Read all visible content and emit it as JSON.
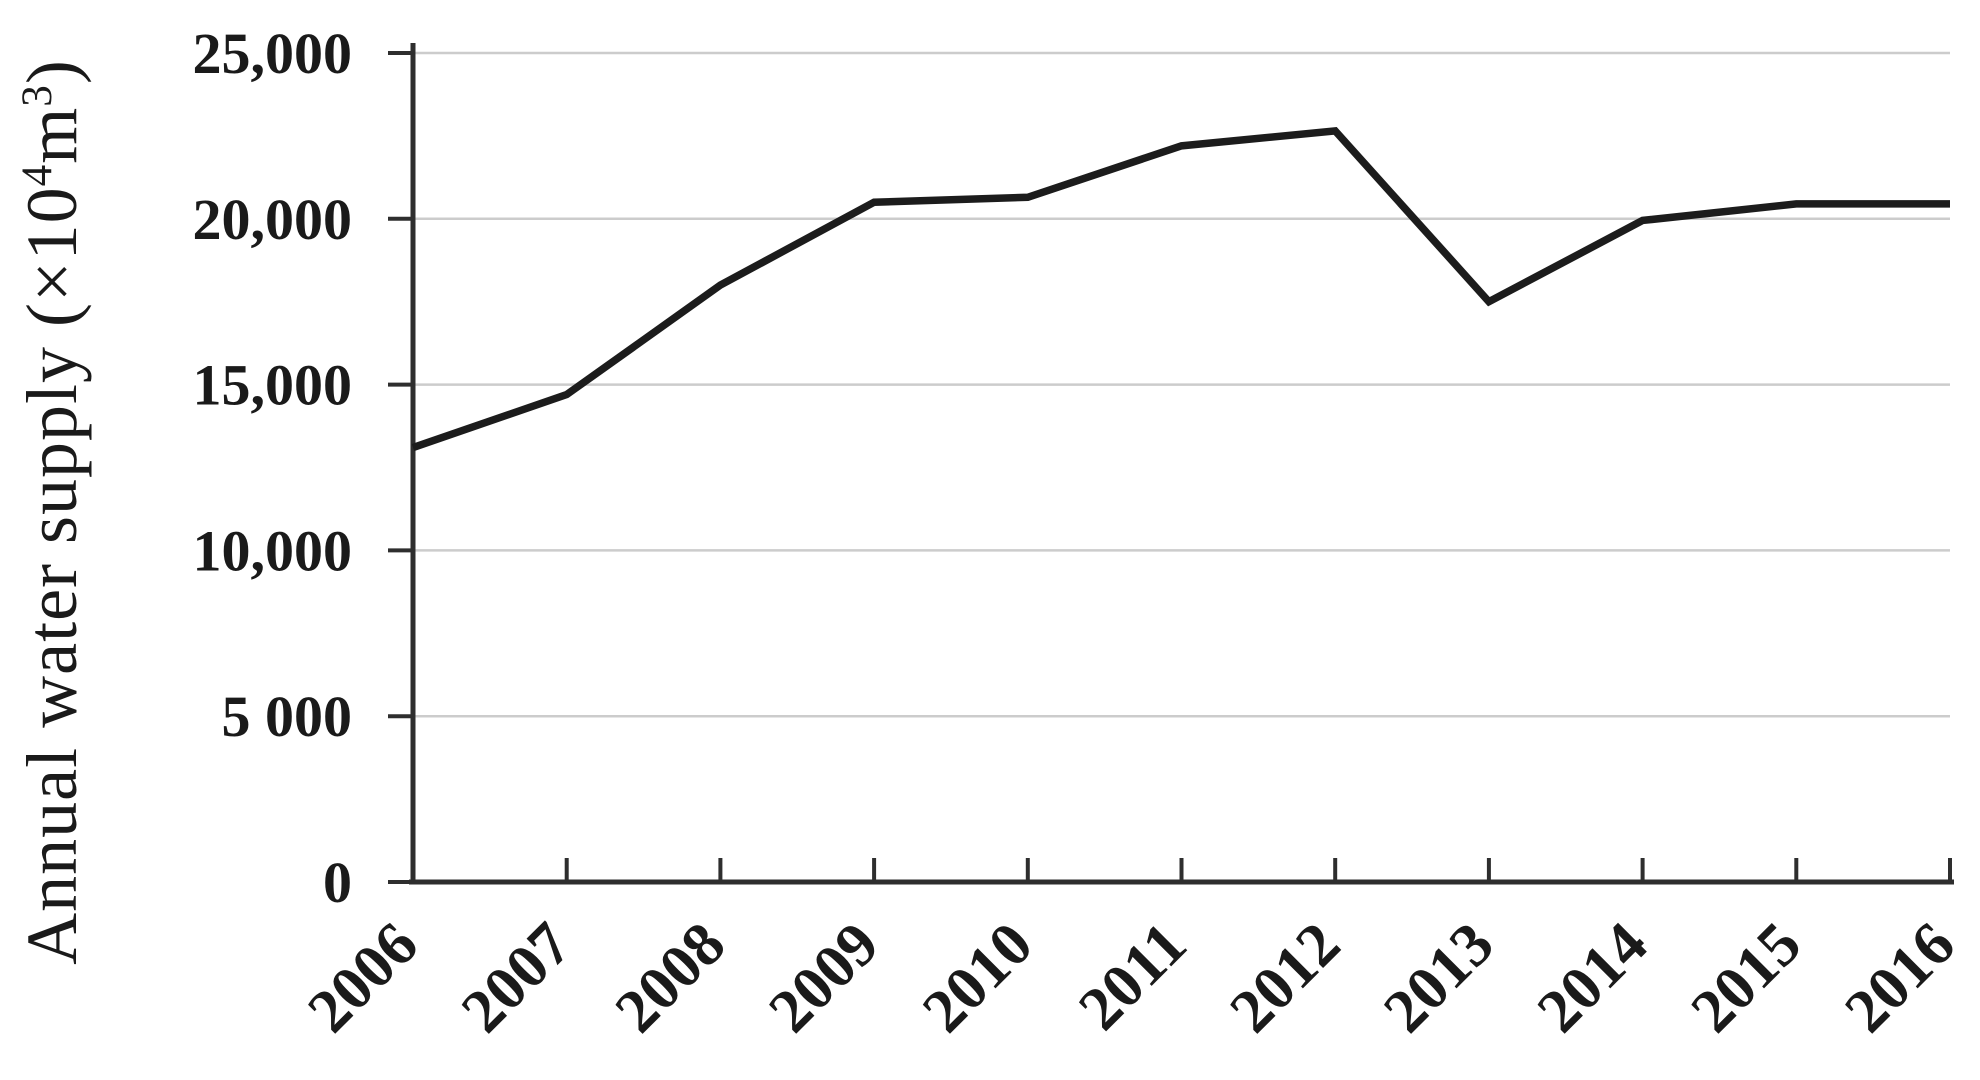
{
  "figure": {
    "background": "#ffffff",
    "text_color": "#1a1a1a",
    "grid_color": "#cccccc",
    "axis_color": "#2e2e2e",
    "line_color": "#1c1c1c"
  },
  "y_axis_title_parts": {
    "prefix": "Annual water supply (×10",
    "sup1": "4",
    "mid": "m",
    "sup2": "3",
    "suffix": ")"
  },
  "chart_data": {
    "type": "line",
    "title": "",
    "xlabel": "",
    "ylabel": "Annual water supply (×10⁴m³)",
    "categories": [
      "2006",
      "2007",
      "2008",
      "2009",
      "2010",
      "2011",
      "2012",
      "2013",
      "2014",
      "2015",
      "2016"
    ],
    "series": [
      {
        "name": "Annual water supply",
        "values": [
          13100,
          14700,
          18000,
          20500,
          20650,
          22200,
          22650,
          17500,
          19950,
          20450,
          20450
        ]
      }
    ],
    "ylim": [
      0,
      25000
    ],
    "ytick_values": [
      0,
      5000,
      10000,
      15000,
      20000,
      25000
    ],
    "ytick_labels": [
      "0",
      "5 000",
      "10,000",
      "15,000",
      "20,000",
      "25,000"
    ],
    "grid": "horizontal-only",
    "legend": "none"
  }
}
